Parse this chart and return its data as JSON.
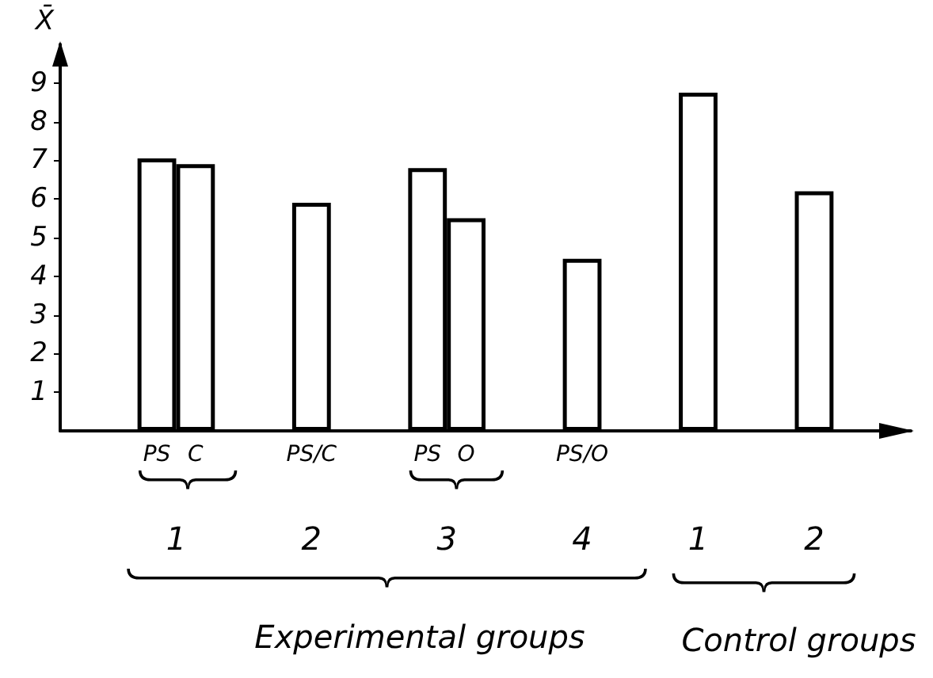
{
  "chart_data": {
    "type": "bar",
    "ylabel": "X̄",
    "categories": [
      null,
      null,
      "PS",
      "C",
      null,
      null,
      "PS/C",
      null,
      null,
      "PS",
      "O",
      null,
      null,
      "PS/O",
      null,
      null,
      null,
      null,
      null,
      null,
      null,
      null
    ],
    "values": [
      null,
      null,
      7.05,
      6.9,
      null,
      null,
      5.9,
      null,
      null,
      6.8,
      5.5,
      null,
      null,
      4.45,
      null,
      null,
      8.75,
      null,
      null,
      6.2,
      null,
      null
    ],
    "color": "#ffffff",
    "ylim": [
      0,
      10
    ],
    "yticks": [
      1,
      2,
      3,
      4,
      5,
      6,
      7,
      8,
      9
    ],
    "grid": false,
    "annotations": [
      "1",
      "2",
      "3",
      "4",
      "1",
      "2",
      "Experimental groups",
      "Control groups"
    ]
  }
}
